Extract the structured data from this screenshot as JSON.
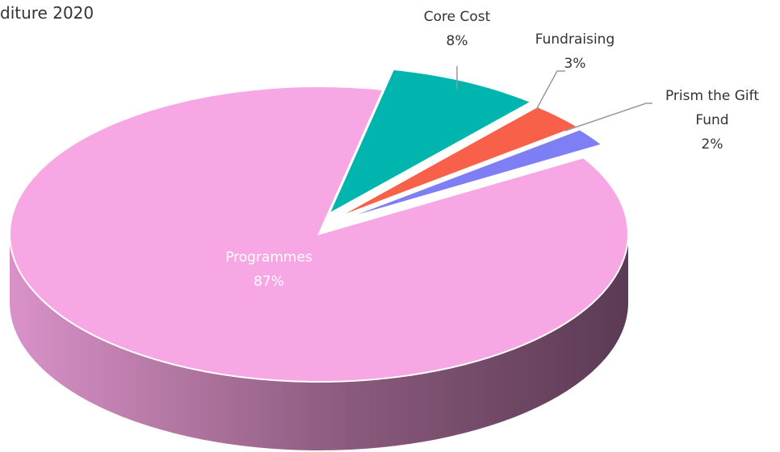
{
  "chart_data": {
    "type": "pie",
    "title": "diture 2020",
    "categories": [
      "Programmes",
      "Core Cost",
      "Fundraising",
      "Prism the Gift Fund"
    ],
    "values": [
      87,
      8,
      3,
      2
    ],
    "value_labels": [
      "87%",
      "8%",
      "3%",
      "2%"
    ],
    "colors": [
      "#f7a8e4",
      "#00b5ad",
      "#f9604a",
      "#7f7ff5"
    ]
  }
}
